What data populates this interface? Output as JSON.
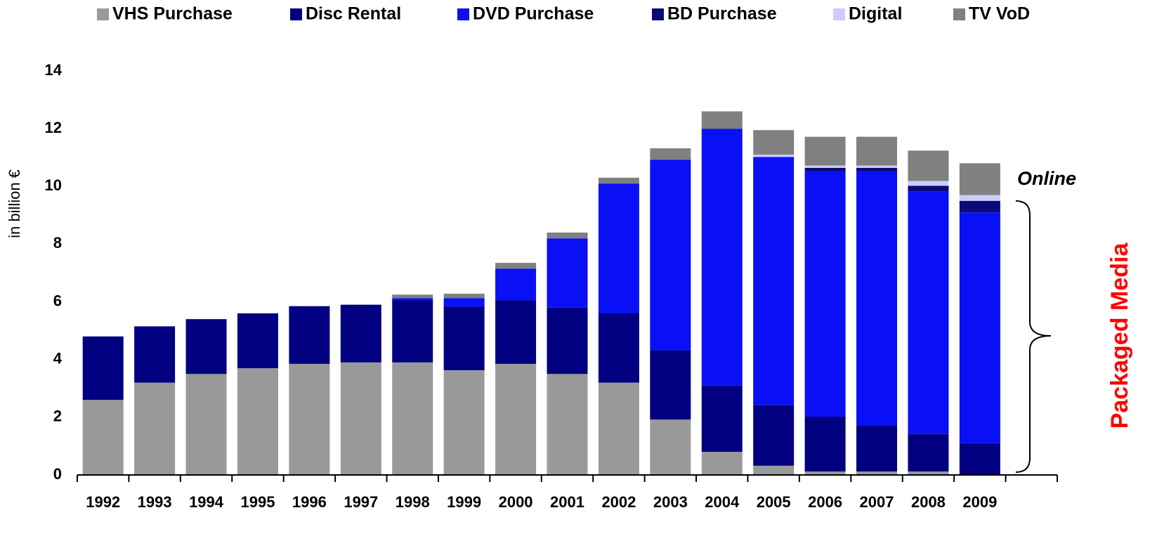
{
  "chart_data": {
    "type": "stacked_bar",
    "categories": [
      "1992",
      "1993",
      "1994",
      "1995",
      "1996",
      "1997",
      "1998",
      "1999",
      "2000",
      "2001",
      "2002",
      "2003",
      "2004",
      "2005",
      "2006",
      "2007",
      "2008",
      "2009"
    ],
    "series": [
      {
        "name": "VHS Purchase",
        "color": "#999999",
        "values": [
          2.6,
          3.2,
          3.5,
          3.7,
          3.85,
          3.9,
          3.9,
          3.63,
          3.85,
          3.5,
          3.2,
          1.92,
          0.8,
          0.32,
          0.12,
          0.12,
          0.12,
          null
        ]
      },
      {
        "name": "Disc Rental",
        "color": "#000080",
        "values": [
          2.2,
          1.95,
          1.9,
          1.9,
          2.0,
          2.0,
          2.15,
          2.2,
          2.2,
          2.3,
          2.4,
          2.4,
          2.3,
          2.1,
          1.9,
          1.6,
          1.3,
          1.1
        ]
      },
      {
        "name": "DVD Purchase",
        "color": "#0a10f5",
        "values": [
          null,
          null,
          null,
          null,
          null,
          null,
          0.08,
          0.3,
          1.1,
          2.4,
          4.5,
          6.6,
          8.9,
          8.6,
          8.5,
          8.8,
          8.4,
          8.0
        ]
      },
      {
        "name": "BD Purchase",
        "color": "#0a0a78",
        "values": [
          null,
          null,
          null,
          null,
          null,
          null,
          null,
          null,
          null,
          null,
          null,
          null,
          null,
          null,
          0.12,
          0.12,
          0.2,
          0.4
        ]
      },
      {
        "name": "Digital",
        "color": "#ccccff",
        "values": [
          null,
          null,
          null,
          null,
          null,
          null,
          null,
          null,
          null,
          null,
          null,
          null,
          null,
          0.08,
          0.08,
          0.08,
          0.17,
          0.2
        ]
      },
      {
        "name": "TV VoD",
        "color": "#808080",
        "values": [
          null,
          null,
          null,
          null,
          null,
          null,
          0.12,
          0.15,
          0.2,
          0.2,
          0.2,
          0.4,
          0.6,
          0.85,
          1.0,
          1.0,
          1.05,
          1.1
        ]
      }
    ],
    "ylabel": "in billion €",
    "annotations": [
      "Online",
      "Packaged Media"
    ],
    "ylim": [
      0,
      14
    ],
    "yticks": [
      0,
      2,
      4,
      6,
      8,
      10,
      12,
      14
    ]
  }
}
